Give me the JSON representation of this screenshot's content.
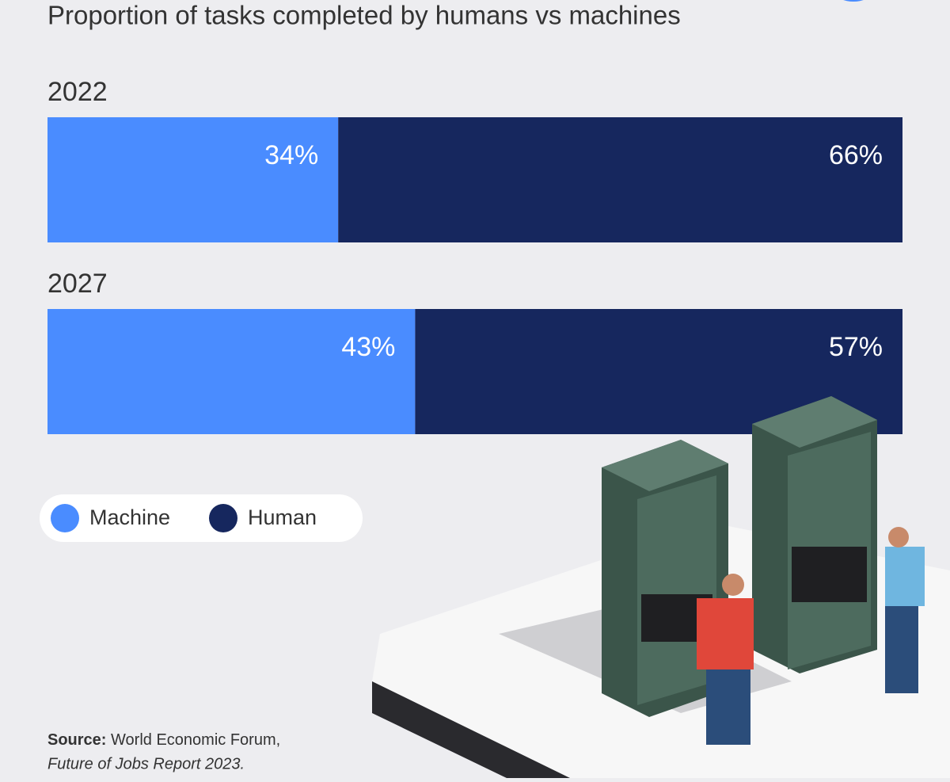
{
  "chart_data": {
    "type": "stacked-bar-horizontal",
    "title": "Proportion of tasks completed by humans vs machines",
    "categories": [
      "2022",
      "2027"
    ],
    "xlim": [
      0,
      100
    ],
    "series": [
      {
        "name": "Machine",
        "color": "#4a8cff",
        "values": [
          34,
          43
        ],
        "value_labels": [
          "34%",
          "43%"
        ]
      },
      {
        "name": "Human",
        "color": "#16275e",
        "values": [
          66,
          57
        ],
        "value_labels": [
          "66%",
          "57%"
        ]
      }
    ],
    "source": {
      "label": "Source:",
      "text": "World Economic Forum,",
      "report": "Future of Jobs Report 2023."
    }
  }
}
